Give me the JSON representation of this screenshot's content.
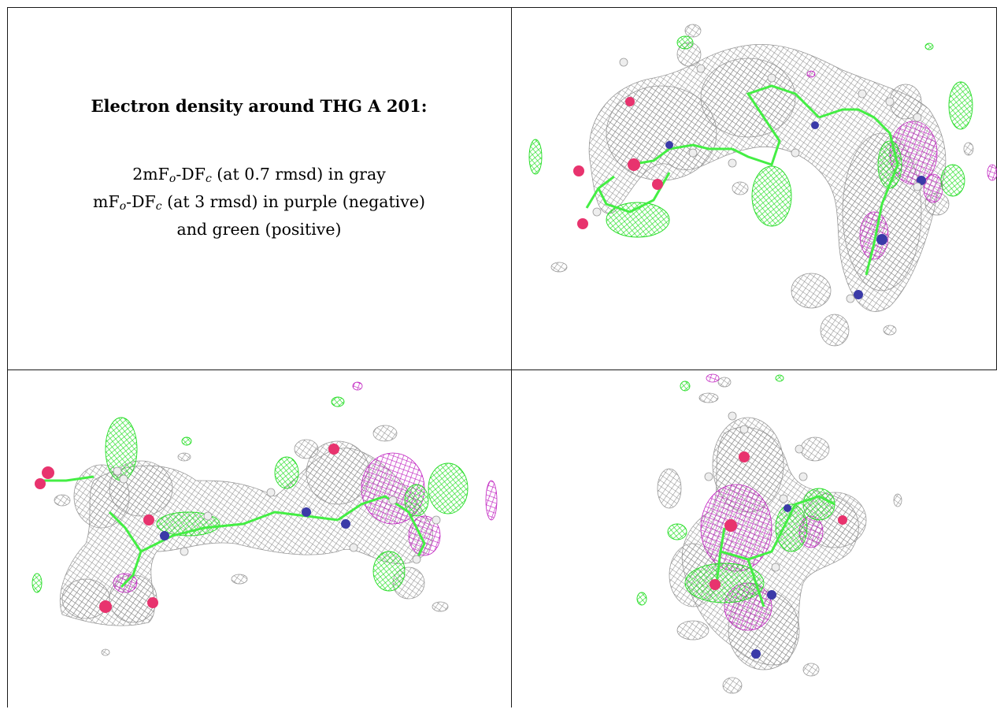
{
  "caption": {
    "title": "Electron density around THG A 201:",
    "line1": {
      "pre": "2mF",
      "sub1": "o",
      "mid": "-DF",
      "sub2": "c",
      "post": " (at 0.7 rmsd) in gray"
    },
    "line2": {
      "pre": "mF",
      "sub1": "o",
      "mid": "-DF",
      "sub2": "c",
      "post": " (at 3 rmsd) in purple (negative)"
    },
    "line3": "and green (positive)"
  },
  "colors": {
    "mesh_gray": "#8c8c8c",
    "mesh_purple": "#c020c0",
    "mesh_green": "#22dd22",
    "stick_green": "#44ee44",
    "oxygen_red": "#e8336e",
    "nitrogen_blue": "#3a3aa8",
    "hydrogen_white": "#e8e8e8",
    "border": "#1a1a1a"
  },
  "views": [
    {
      "id": "view-top-right",
      "icon": "density-map-view-1"
    },
    {
      "id": "view-bottom-left",
      "icon": "density-map-view-2"
    },
    {
      "id": "view-bottom-right",
      "icon": "density-map-view-3"
    }
  ]
}
